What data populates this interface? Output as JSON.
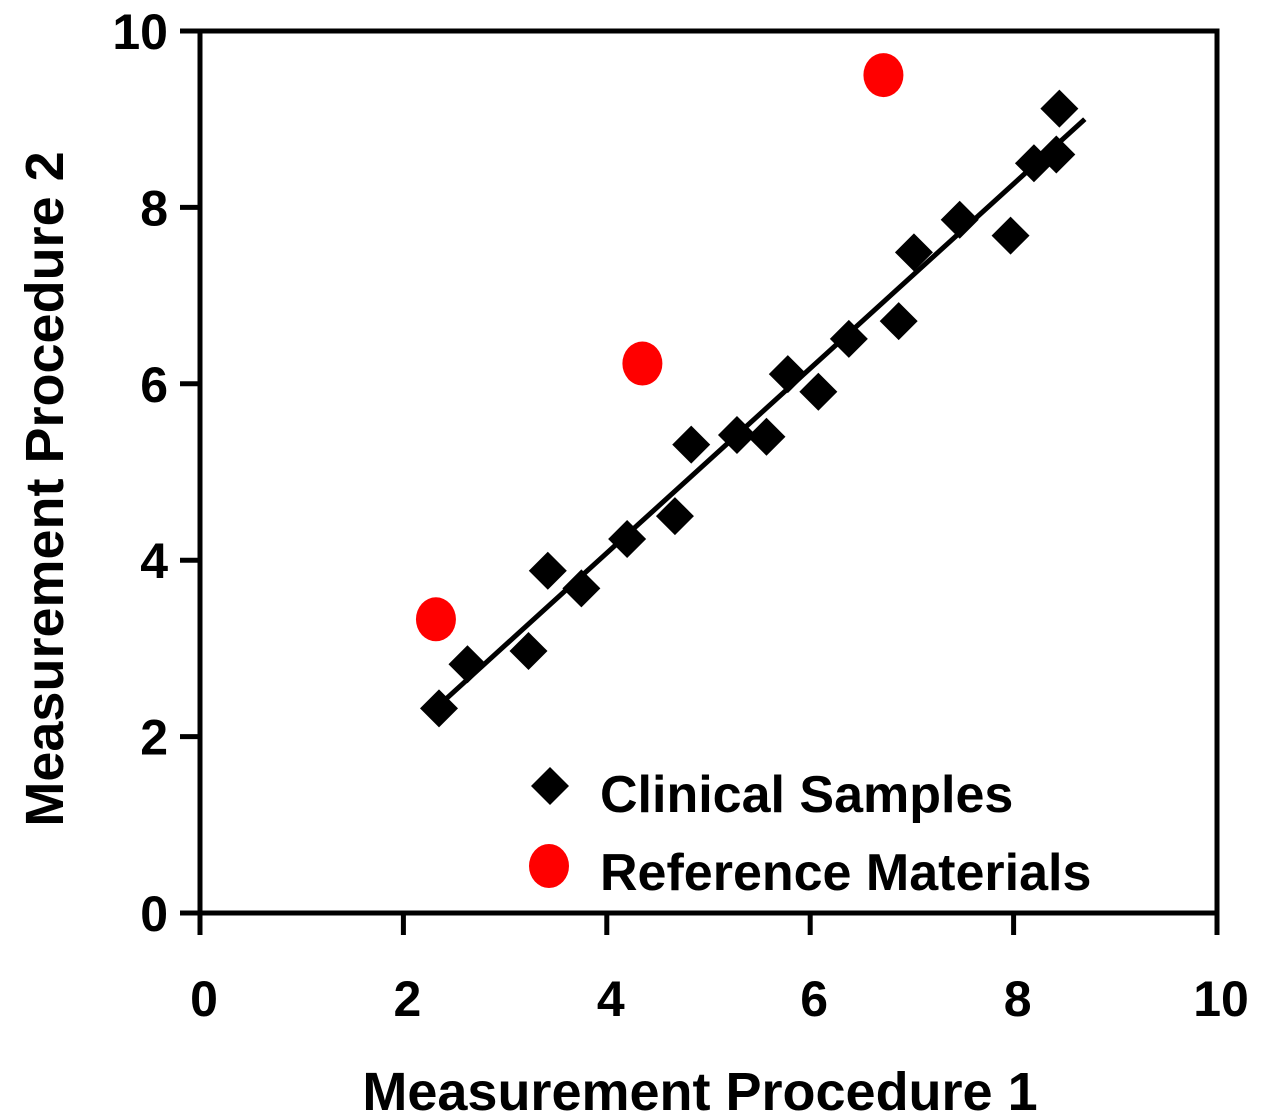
{
  "chart_data": {
    "type": "scatter",
    "title": "",
    "xlabel": "Measurement Procedure 1",
    "ylabel": "Measurement Procedure 2",
    "xlim": [
      0,
      10
    ],
    "ylim": [
      0,
      10
    ],
    "x_ticks": [
      "0",
      "2",
      "4",
      "6",
      "8",
      "10"
    ],
    "y_ticks": [
      "0",
      "2",
      "4",
      "6",
      "8",
      "10"
    ],
    "grid": false,
    "legend_position": "bottom-right",
    "series": [
      {
        "name": "Clinical Samples",
        "marker": "diamond",
        "color": "#000000",
        "points": [
          {
            "x": 2.35,
            "y": 2.32
          },
          {
            "x": 2.63,
            "y": 2.82
          },
          {
            "x": 3.23,
            "y": 2.97
          },
          {
            "x": 3.42,
            "y": 3.88
          },
          {
            "x": 3.75,
            "y": 3.68
          },
          {
            "x": 4.2,
            "y": 4.24
          },
          {
            "x": 4.67,
            "y": 4.5
          },
          {
            "x": 4.83,
            "y": 5.31
          },
          {
            "x": 5.28,
            "y": 5.42
          },
          {
            "x": 5.57,
            "y": 5.4
          },
          {
            "x": 5.78,
            "y": 6.11
          },
          {
            "x": 6.08,
            "y": 5.91
          },
          {
            "x": 6.38,
            "y": 6.51
          },
          {
            "x": 6.87,
            "y": 6.71
          },
          {
            "x": 7.02,
            "y": 7.49
          },
          {
            "x": 7.47,
            "y": 7.86
          },
          {
            "x": 7.97,
            "y": 7.68
          },
          {
            "x": 8.2,
            "y": 8.5
          },
          {
            "x": 8.42,
            "y": 8.6
          },
          {
            "x": 8.45,
            "y": 9.12
          }
        ]
      },
      {
        "name": "Reference Materials",
        "marker": "circle",
        "color": "#ff0000",
        "points": [
          {
            "x": 2.32,
            "y": 3.33
          },
          {
            "x": 4.35,
            "y": 6.23
          },
          {
            "x": 6.72,
            "y": 9.5
          }
        ]
      }
    ],
    "regression_line": {
      "x_start": 2.25,
      "y_start": 2.25,
      "x_end": 8.7,
      "y_end": 9.0
    }
  }
}
